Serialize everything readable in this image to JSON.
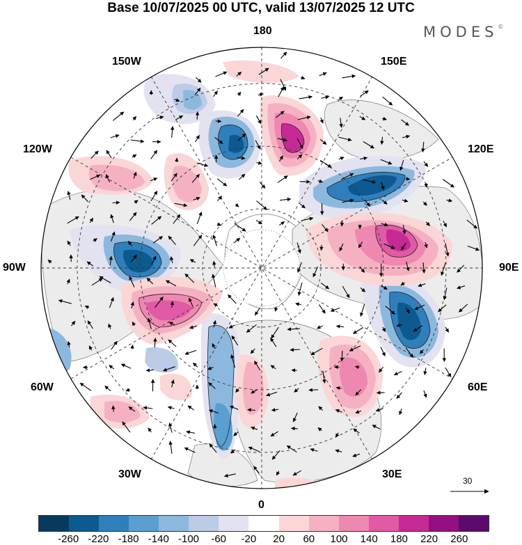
{
  "title": "Base 10/07/2025 00 UTC, valid 13/07/2025 12 UTC",
  "brand": "MODES",
  "brand_mark": "©",
  "map": {
    "longitude_labels": {
      "top": "180",
      "bottom": "0",
      "left": "90W",
      "right": "90E",
      "upper_left_1": "150W",
      "upper_left_2": "120W",
      "upper_right_1": "150E",
      "upper_right_2": "120E",
      "lower_left_1": "60W",
      "lower_left_2": "30W",
      "lower_right_1": "60E",
      "lower_right_2": "30E"
    },
    "reference_vector": "30",
    "colors": {
      "negative": [
        "#083a5e",
        "#0c5a8f",
        "#2f7fbd",
        "#5a9fd0",
        "#8db8de",
        "#bccbe6",
        "#e3e2f0"
      ],
      "neutral": "#ffffff",
      "positive": [
        "#fad6d6",
        "#f5b1c2",
        "#ef88b1",
        "#e05aa5",
        "#c52a94",
        "#931083",
        "#5b0a6b"
      ],
      "land": "#ececec"
    }
  },
  "colorbar": {
    "ticks": [
      "-260",
      "-220",
      "-180",
      "-140",
      "-100",
      "-60",
      "-20",
      "20",
      "60",
      "100",
      "140",
      "180",
      "220",
      "260"
    ]
  }
}
